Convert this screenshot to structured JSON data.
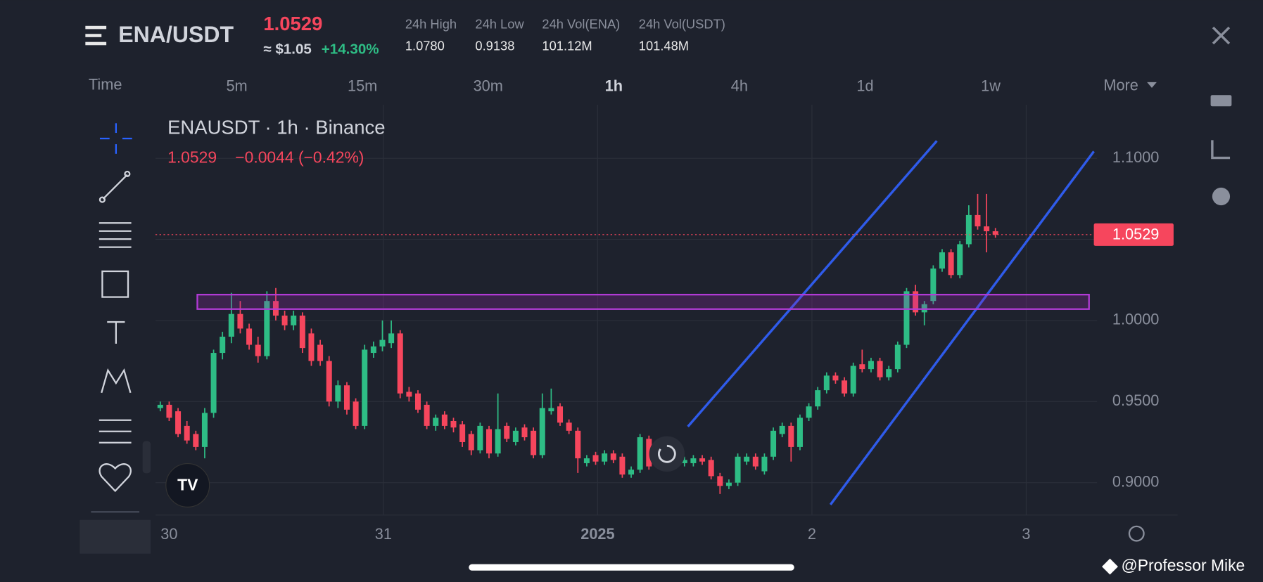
{
  "header": {
    "pair": "ENA/USDT",
    "price": "1.0529",
    "approx": "≈ $1.05",
    "change": "+14.30%",
    "stats": [
      {
        "label": "24h High",
        "value": "1.0780"
      },
      {
        "label": "24h Low",
        "value": "0.9138"
      },
      {
        "label": "24h Vol(ENA)",
        "value": "101.12M"
      },
      {
        "label": "24h Vol(USDT)",
        "value": "101.48M"
      }
    ]
  },
  "timeframes": {
    "label": "Time",
    "items": [
      "5m",
      "15m",
      "30m",
      "1h",
      "4h",
      "1d",
      "1w"
    ],
    "active": "1h",
    "more": "More"
  },
  "legend": {
    "title": "ENAUSDT · 1h · Binance",
    "price": "1.0529",
    "change": "−0.0044 (−0.42%)"
  },
  "watermark": "@Professor Mike",
  "chart_data": {
    "type": "candlestick",
    "up_color": "#2ebd85",
    "down_color": "#f6465d",
    "ylim": [
      0.88,
      1.133
    ],
    "yticks": [
      {
        "value": 0.9,
        "label": "0.9000"
      },
      {
        "value": 0.95,
        "label": "0.9500"
      },
      {
        "value": 1.0,
        "label": "1.0000"
      },
      {
        "value": 1.05,
        "label": "1.0500"
      },
      {
        "value": 1.1,
        "label": "1.1000"
      }
    ],
    "xtick_labels": [
      "30",
      "31",
      "2025",
      "2",
      "3"
    ],
    "last_price": 1.0529,
    "grid": true,
    "ohlc": [
      [
        0.946,
        0.95,
        0.944,
        0.948
      ],
      [
        0.948,
        0.95,
        0.938,
        0.94
      ],
      [
        0.944,
        0.946,
        0.928,
        0.93
      ],
      [
        0.935,
        0.938,
        0.924,
        0.926
      ],
      [
        0.93,
        0.932,
        0.92,
        0.922
      ],
      [
        0.922,
        0.946,
        0.915,
        0.943
      ],
      [
        0.943,
        0.982,
        0.94,
        0.98
      ],
      [
        0.98,
        0.993,
        0.976,
        0.99
      ],
      [
        0.99,
        1.017,
        0.986,
        1.004
      ],
      [
        1.004,
        1.012,
        0.992,
        0.995
      ],
      [
        0.995,
        0.998,
        0.982,
        0.985
      ],
      [
        0.985,
        0.99,
        0.974,
        0.978
      ],
      [
        0.978,
        1.018,
        0.976,
        1.012
      ],
      [
        1.012,
        1.02,
        1.0,
        1.003
      ],
      [
        1.003,
        1.006,
        0.994,
        0.997
      ],
      [
        0.997,
        1.006,
        0.994,
        1.003
      ],
      [
        1.003,
        1.005,
        0.98,
        0.983
      ],
      [
        0.992,
        0.995,
        0.972,
        0.975
      ],
      [
        0.985,
        0.988,
        0.972,
        0.975
      ],
      [
        0.975,
        0.978,
        0.947,
        0.95
      ],
      [
        0.95,
        0.963,
        0.946,
        0.96
      ],
      [
        0.96,
        0.962,
        0.942,
        0.945
      ],
      [
        0.95,
        0.952,
        0.933,
        0.935
      ],
      [
        0.935,
        0.985,
        0.933,
        0.982
      ],
      [
        0.98,
        0.987,
        0.977,
        0.984
      ],
      [
        0.984,
        1.0,
        0.981,
        0.988
      ],
      [
        0.986,
        1.0,
        0.983,
        0.992
      ],
      [
        0.992,
        0.994,
        0.952,
        0.955
      ],
      [
        0.956,
        0.959,
        0.95,
        0.953
      ],
      [
        0.955,
        0.957,
        0.943,
        0.945
      ],
      [
        0.948,
        0.95,
        0.933,
        0.935
      ],
      [
        0.935,
        0.942,
        0.932,
        0.94
      ],
      [
        0.942,
        0.944,
        0.933,
        0.935
      ],
      [
        0.938,
        0.94,
        0.931,
        0.934
      ],
      [
        0.936,
        0.938,
        0.922,
        0.925
      ],
      [
        0.93,
        0.932,
        0.917,
        0.92
      ],
      [
        0.92,
        0.937,
        0.918,
        0.935
      ],
      [
        0.933,
        0.935,
        0.915,
        0.918
      ],
      [
        0.918,
        0.955,
        0.916,
        0.933
      ],
      [
        0.935,
        0.937,
        0.925,
        0.927
      ],
      [
        0.925,
        0.934,
        0.923,
        0.932
      ],
      [
        0.934,
        0.936,
        0.926,
        0.928
      ],
      [
        0.932,
        0.934,
        0.915,
        0.917
      ],
      [
        0.917,
        0.955,
        0.915,
        0.946
      ],
      [
        0.944,
        0.958,
        0.942,
        0.946
      ],
      [
        0.947,
        0.949,
        0.935,
        0.937
      ],
      [
        0.937,
        0.939,
        0.93,
        0.932
      ],
      [
        0.932,
        0.934,
        0.906,
        0.915
      ],
      [
        0.912,
        0.917,
        0.91,
        0.915
      ],
      [
        0.917,
        0.919,
        0.911,
        0.913
      ],
      [
        0.913,
        0.92,
        0.911,
        0.918
      ],
      [
        0.918,
        0.92,
        0.912,
        0.914
      ],
      [
        0.916,
        0.918,
        0.903,
        0.905
      ],
      [
        0.905,
        0.91,
        0.903,
        0.908
      ],
      [
        0.908,
        0.93,
        0.906,
        0.928
      ],
      [
        0.927,
        0.929,
        0.908,
        0.91
      ],
      [
        0.922,
        0.924,
        0.912,
        0.914
      ],
      [
        0.912,
        0.917,
        0.91,
        0.915
      ],
      [
        0.915,
        0.917,
        0.91,
        0.912
      ],
      [
        0.912,
        0.916,
        0.91,
        0.914
      ],
      [
        0.912,
        0.917,
        0.91,
        0.915
      ],
      [
        0.915,
        0.917,
        0.911,
        0.913
      ],
      [
        0.914,
        0.916,
        0.902,
        0.904
      ],
      [
        0.904,
        0.906,
        0.893,
        0.898
      ],
      [
        0.898,
        0.902,
        0.896,
        0.9
      ],
      [
        0.9,
        0.918,
        0.898,
        0.916
      ],
      [
        0.913,
        0.918,
        0.911,
        0.916
      ],
      [
        0.916,
        0.918,
        0.908,
        0.91
      ],
      [
        0.907,
        0.918,
        0.905,
        0.916
      ],
      [
        0.916,
        0.934,
        0.914,
        0.932
      ],
      [
        0.93,
        0.937,
        0.928,
        0.935
      ],
      [
        0.935,
        0.937,
        0.913,
        0.922
      ],
      [
        0.922,
        0.942,
        0.92,
        0.94
      ],
      [
        0.94,
        0.949,
        0.938,
        0.947
      ],
      [
        0.947,
        0.959,
        0.945,
        0.957
      ],
      [
        0.957,
        0.968,
        0.955,
        0.966
      ],
      [
        0.966,
        0.968,
        0.961,
        0.963
      ],
      [
        0.963,
        0.965,
        0.953,
        0.955
      ],
      [
        0.955,
        0.974,
        0.953,
        0.972
      ],
      [
        0.973,
        0.982,
        0.968,
        0.97
      ],
      [
        0.97,
        0.977,
        0.968,
        0.975
      ],
      [
        0.975,
        0.977,
        0.963,
        0.965
      ],
      [
        0.965,
        0.972,
        0.963,
        0.97
      ],
      [
        0.97,
        0.987,
        0.968,
        0.985
      ],
      [
        0.985,
        1.02,
        0.983,
        1.018
      ],
      [
        1.018,
        1.022,
        1.003,
        1.005
      ],
      [
        1.005,
        1.012,
        0.997,
        1.01
      ],
      [
        1.012,
        1.034,
        1.01,
        1.032
      ],
      [
        1.032,
        1.044,
        1.03,
        1.042
      ],
      [
        1.042,
        1.044,
        1.026,
        1.028
      ],
      [
        1.028,
        1.049,
        1.026,
        1.047
      ],
      [
        1.047,
        1.071,
        1.045,
        1.065
      ],
      [
        1.065,
        1.078,
        1.056,
        1.058
      ],
      [
        1.058,
        1.078,
        1.042,
        1.055
      ],
      [
        1.055,
        1.057,
        1.051,
        1.0529
      ]
    ]
  }
}
